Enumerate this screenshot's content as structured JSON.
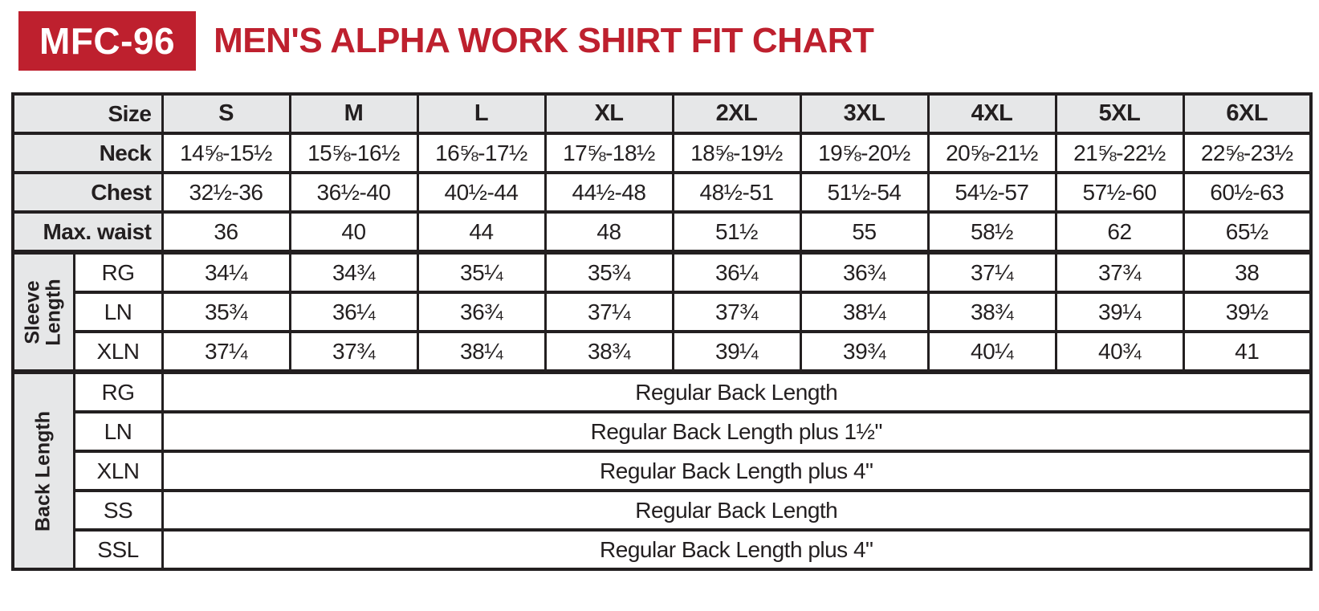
{
  "header": {
    "badge": "MFC-96",
    "title": "MEN'S ALPHA WORK SHIRT FIT CHART"
  },
  "colors": {
    "brand_red": "#BE202E",
    "cell_gray": "#E6E7E8",
    "ink_black": "#231F20"
  },
  "table": {
    "corner_label": "Size",
    "sizes": [
      "S",
      "M",
      "L",
      "XL",
      "2XL",
      "3XL",
      "4XL",
      "5XL",
      "6XL"
    ],
    "measures": [
      {
        "label": "Neck",
        "values": [
          "14⅝-15½",
          "15⅝-16½",
          "16⅝-17½",
          "17⅝-18½",
          "18⅝-19½",
          "19⅝-20½",
          "20⅝-21½",
          "21⅝-22½",
          "22⅝-23½"
        ]
      },
      {
        "label": "Chest",
        "values": [
          "32½-36",
          "36½-40",
          "40½-44",
          "44½-48",
          "48½-51",
          "51½-54",
          "54½-57",
          "57½-60",
          "60½-63"
        ]
      },
      {
        "label": "Max. waist",
        "values": [
          "36",
          "40",
          "44",
          "48",
          "51½",
          "55",
          "58½",
          "62",
          "65½"
        ]
      }
    ],
    "sleeve": {
      "group_label": "Sleeve Length",
      "rows": [
        {
          "label": "RG",
          "values": [
            "34¼",
            "34¾",
            "35¼",
            "35¾",
            "36¼",
            "36¾",
            "37¼",
            "37¾",
            "38"
          ]
        },
        {
          "label": "LN",
          "values": [
            "35¾",
            "36¼",
            "36¾",
            "37¼",
            "37¾",
            "38¼",
            "38¾",
            "39¼",
            "39½"
          ]
        },
        {
          "label": "XLN",
          "values": [
            "37¼",
            "37¾",
            "38¼",
            "38¾",
            "39¼",
            "39¾",
            "40¼",
            "40¾",
            "41"
          ]
        }
      ]
    },
    "back": {
      "group_label": "Back Length",
      "rows": [
        {
          "label": "RG",
          "value": "Regular Back Length"
        },
        {
          "label": "LN",
          "value": "Regular Back Length plus 1½\""
        },
        {
          "label": "XLN",
          "value": "Regular Back Length plus 4\""
        },
        {
          "label": "SS",
          "value": "Regular Back Length"
        },
        {
          "label": "SSL",
          "value": "Regular Back Length plus 4\""
        }
      ]
    }
  },
  "chart_data": {
    "type": "table",
    "title": "MEN'S ALPHA WORK SHIRT FIT CHART",
    "product_code": "MFC-96",
    "columns": [
      "Size",
      "S",
      "M",
      "L",
      "XL",
      "2XL",
      "3XL",
      "4XL",
      "5XL",
      "6XL"
    ],
    "rows": [
      [
        "Neck",
        "14⅝-15½",
        "15⅝-16½",
        "16⅝-17½",
        "17⅝-18½",
        "18⅝-19½",
        "19⅝-20½",
        "20⅝-21½",
        "21⅝-22½",
        "22⅝-23½"
      ],
      [
        "Chest",
        "32½-36",
        "36½-40",
        "40½-44",
        "44½-48",
        "48½-51",
        "51½-54",
        "54½-57",
        "57½-60",
        "60½-63"
      ],
      [
        "Max. waist",
        "36",
        "40",
        "44",
        "48",
        "51½",
        "55",
        "58½",
        "62",
        "65½"
      ],
      [
        "Sleeve Length - RG",
        "34¼",
        "34¾",
        "35¼",
        "35¾",
        "36¼",
        "36¾",
        "37¼",
        "37¾",
        "38"
      ],
      [
        "Sleeve Length - LN",
        "35¾",
        "36¼",
        "36¾",
        "37¼",
        "37¾",
        "38¼",
        "38¾",
        "39¼",
        "39½"
      ],
      [
        "Sleeve Length - XLN",
        "37¼",
        "37¾",
        "38¼",
        "38¾",
        "39¼",
        "39¾",
        "40¼",
        "40¾",
        "41"
      ],
      [
        "Back Length - RG",
        "Regular Back Length"
      ],
      [
        "Back Length - LN",
        "Regular Back Length plus 1½\""
      ],
      [
        "Back Length - XLN",
        "Regular Back Length plus 4\""
      ],
      [
        "Back Length - SS",
        "Regular Back Length"
      ],
      [
        "Back Length - SSL",
        "Regular Back Length plus 4\""
      ]
    ]
  }
}
